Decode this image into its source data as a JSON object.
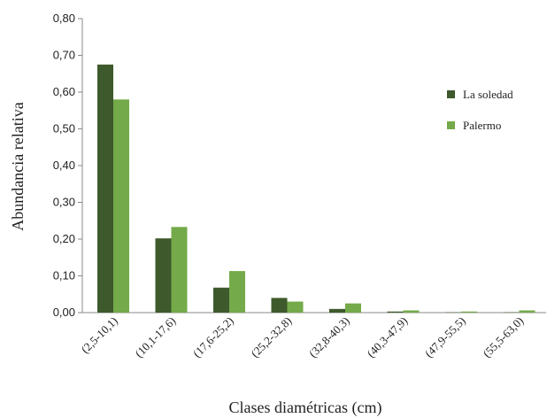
{
  "chart_data": {
    "type": "bar",
    "xlabel": "Clases diamétricas (cm)",
    "ylabel": "Abundancia relativa",
    "ylim": [
      0,
      0.8
    ],
    "yticks": [
      "0,00",
      "0,10",
      "0,20",
      "0,30",
      "0,40",
      "0,50",
      "0,60",
      "0,70",
      "0,80"
    ],
    "categories": [
      "(2,5-10,1)",
      "(10,1-17,6)",
      "(17,6-25,2)",
      "(25,2-32,8)",
      "(32,8-40,3)",
      "(40,3-47,9)",
      "(47,9-55,5)",
      "(55,5-63,0)"
    ],
    "series": [
      {
        "name": "La soledad",
        "color": "#3e5a2c",
        "values": [
          0.675,
          0.202,
          0.068,
          0.04,
          0.01,
          0.003,
          0.001,
          0.001
        ]
      },
      {
        "name": "Palermo",
        "color": "#74aa4a",
        "values": [
          0.58,
          0.233,
          0.113,
          0.03,
          0.025,
          0.006,
          0.003,
          0.006
        ]
      }
    ],
    "legend_position": "right",
    "grid": false
  }
}
